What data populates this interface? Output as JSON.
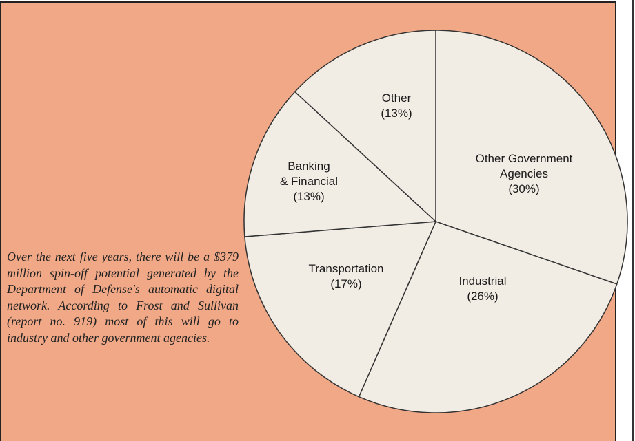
{
  "chart_data": {
    "type": "pie",
    "categories": [
      "Other Government Agencies",
      "Industrial",
      "Transportation",
      "Banking & Financial",
      "Other"
    ],
    "values": [
      30,
      26,
      17,
      13,
      13
    ],
    "value_labels": [
      "(30%)",
      "(26%)",
      "(17%)",
      "(13%)",
      "(13%)"
    ],
    "color": "#f1ece4"
  },
  "caption": "Over the next five years, there will be a $379 million spin-off potential generated by the Department of Defense's automatic digital network. According to Frost and Sullivan (report no. 919) most of this will go to industry and other government agencies."
}
